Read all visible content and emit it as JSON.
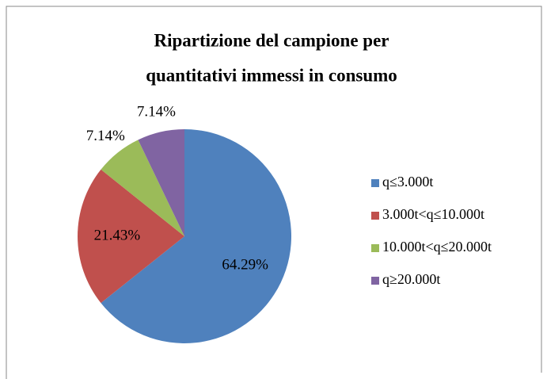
{
  "chart_data": {
    "type": "pie",
    "title": [
      "Ripartizione del campione per",
      "quantitativi immessi in consumo"
    ],
    "categories": [
      "q≤3.000t",
      "3.000t<q≤10.000t",
      "10.000t<q≤20.000t",
      "q≥20.000t"
    ],
    "values": [
      64.29,
      21.43,
      7.14,
      7.14
    ],
    "value_labels": [
      "64.29%",
      "21.43%",
      "7.14%",
      "7.14%"
    ],
    "colors": [
      "#4f81bd",
      "#c0504d",
      "#9bbb59",
      "#8064a2"
    ],
    "legend": "right"
  }
}
